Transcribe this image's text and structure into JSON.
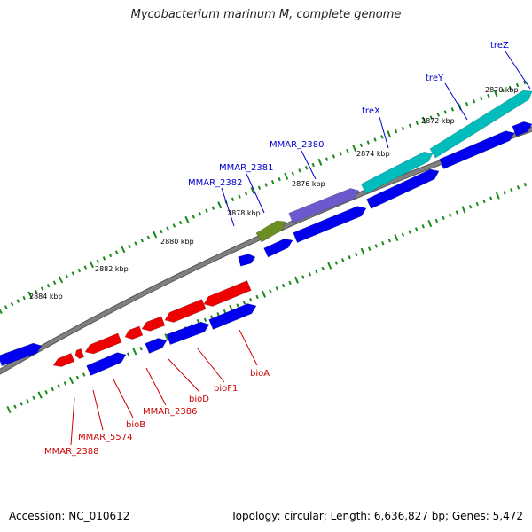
{
  "title": "Mycobacterium marinum M, complete genome",
  "footer": {
    "accession": "Accession: NC_010612",
    "topology": "Topology: circular; Length: 6,636,827 bp; Genes: 5,472"
  },
  "colors": {
    "forward_genes": "#0000ee",
    "reverse_genes": "#ee0000",
    "tre_operon": "#00bcbc",
    "mmar_2380": "#6a5acd",
    "mmar_2381": "#6b8e23",
    "backbone": "#808080",
    "ticks": "#1a8a1a",
    "label_blue": "#0000cc",
    "label_red": "#cc0000"
  },
  "kbp_labels": [
    "2870 kbp",
    "2872 kbp",
    "2874 kbp",
    "2876 kbp",
    "2878 kbp",
    "2880 kbp",
    "2882 kbp",
    "2884 kbp"
  ],
  "gene_labels_top": [
    "treZ",
    "treY",
    "treX",
    "MMAR_2380",
    "MMAR_2381",
    "MMAR_2382"
  ],
  "gene_labels_bottom": [
    "bioA",
    "bioF1",
    "bioD",
    "MMAR_2386",
    "bioB",
    "MMAR_5574",
    "MMAR_2388"
  ]
}
